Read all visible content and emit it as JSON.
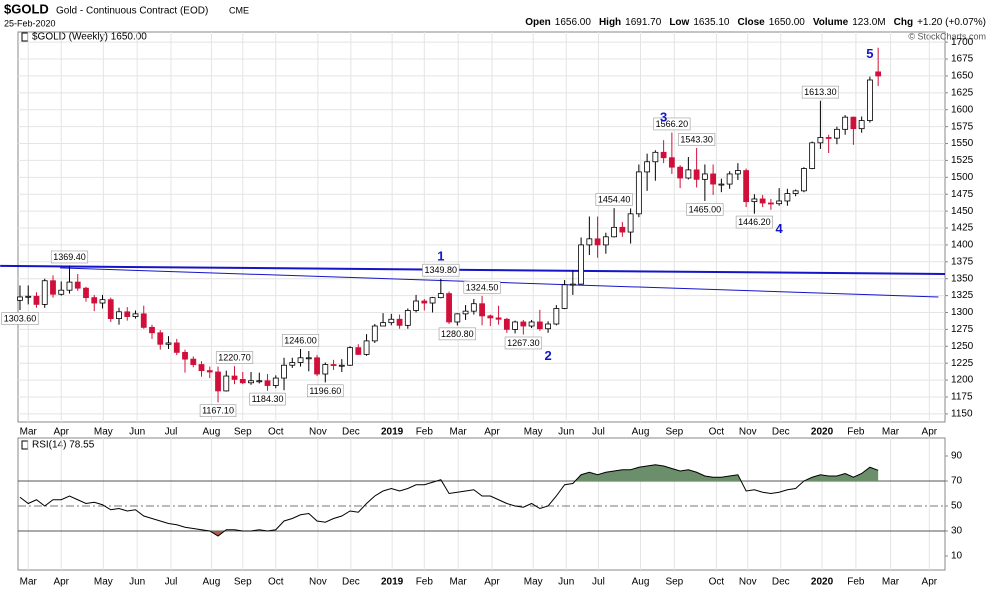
{
  "header": {
    "symbol": "$GOLD",
    "name": "Gold - Continuous Contract (EOD)",
    "exchange": "CME",
    "date": "25-Feb-2020",
    "copyright": "© StockCharts.com",
    "stats": [
      {
        "label": "Open",
        "value": "1656.00"
      },
      {
        "label": "High",
        "value": "1691.70"
      },
      {
        "label": "Low",
        "value": "1635.10"
      },
      {
        "label": "Close",
        "value": "1650.00"
      },
      {
        "label": "Volume",
        "value": "123.0M"
      },
      {
        "label": "Chg",
        "value": "+1.20 (+0.07%)"
      }
    ]
  },
  "chart_data": [
    {
      "type": "candlestick",
      "legend": "$GOLD (Weekly) 1650.00",
      "up_color": "#000000",
      "down_color": "#d0103a",
      "xlim": [
        -0.24,
        112.1
      ],
      "ylim": [
        1138,
        1715
      ],
      "grid": true,
      "yticks": [
        1150,
        1175,
        1200,
        1225,
        1250,
        1275,
        1300,
        1325,
        1350,
        1375,
        1400,
        1425,
        1450,
        1475,
        1500,
        1525,
        1550,
        1575,
        1600,
        1625,
        1650,
        1675,
        1700
      ],
      "xticks": [
        {
          "value": 1.0,
          "label": "Mar"
        },
        {
          "value": 5.0,
          "label": "Apr"
        },
        {
          "value": 10.1,
          "label": "May"
        },
        {
          "value": 14.2,
          "label": "Jun"
        },
        {
          "value": 18.3,
          "label": "Jul"
        },
        {
          "value": 23.2,
          "label": "Aug"
        },
        {
          "value": 27.0,
          "label": "Sep"
        },
        {
          "value": 31.0,
          "label": "Oct"
        },
        {
          "value": 36.1,
          "label": "Nov"
        },
        {
          "value": 40.1,
          "label": "Dec"
        },
        {
          "value": 45.1,
          "label": "2019"
        },
        {
          "value": 49.0,
          "label": "Feb"
        },
        {
          "value": 53.1,
          "label": "Mar"
        },
        {
          "value": 57.2,
          "label": "Apr"
        },
        {
          "value": 62.2,
          "label": "May"
        },
        {
          "value": 66.2,
          "label": "Jun"
        },
        {
          "value": 70.1,
          "label": "Jul"
        },
        {
          "value": 75.2,
          "label": "Aug"
        },
        {
          "value": 79.3,
          "label": "Sep"
        },
        {
          "value": 84.4,
          "label": "Oct"
        },
        {
          "value": 88.2,
          "label": "Nov"
        },
        {
          "value": 92.2,
          "label": "Dec"
        },
        {
          "value": 97.2,
          "label": "2020"
        },
        {
          "value": 101.3,
          "label": "Feb"
        },
        {
          "value": 105.5,
          "label": "Mar"
        },
        {
          "value": 110.2,
          "label": "Apr"
        }
      ],
      "open": [
        1318,
        1323,
        1324,
        1312,
        1347,
        1327,
        1333,
        1345,
        1336,
        1322,
        1314,
        1319,
        1291,
        1301,
        1294,
        1298,
        1278,
        1270,
        1253,
        1255,
        1241,
        1231,
        1223,
        1214,
        1212,
        1184,
        1206,
        1201,
        1196,
        1199,
        1199,
        1192,
        1203,
        1222,
        1226,
        1233,
        1233,
        1209,
        1223,
        1222,
        1222,
        1248,
        1238,
        1258,
        1280,
        1285,
        1290,
        1281,
        1303,
        1317,
        1314,
        1322,
        1328,
        1286,
        1298,
        1302,
        1313,
        1295,
        1292,
        1290,
        1275,
        1286,
        1280,
        1286,
        1276,
        1283,
        1306,
        1341,
        1342,
        1400,
        1409,
        1400,
        1412,
        1426,
        1419,
        1446,
        1508,
        1523,
        1537,
        1529,
        1515,
        1499,
        1511,
        1497,
        1505,
        1490,
        1490,
        1505,
        1510,
        1464,
        1468,
        1462,
        1461,
        1465,
        1476,
        1480,
        1513,
        1551,
        1559,
        1558,
        1571,
        1589,
        1572,
        1584,
        1656
      ],
      "high": [
        1340,
        1340,
        1330,
        1350,
        1355,
        1346,
        1369.4,
        1357,
        1338,
        1326,
        1326,
        1322,
        1307,
        1308,
        1303,
        1310,
        1282,
        1274,
        1265,
        1261,
        1245,
        1235,
        1228,
        1220,
        1220,
        1214,
        1220.7,
        1212,
        1212,
        1211,
        1209,
        1207,
        1233,
        1233,
        1246,
        1243,
        1237,
        1226,
        1230,
        1231,
        1250,
        1253,
        1268,
        1283,
        1299,
        1298,
        1297,
        1306,
        1326,
        1320,
        1323,
        1349.8,
        1331,
        1299,
        1311,
        1320,
        1324.5,
        1297,
        1310,
        1292,
        1288,
        1289,
        1289,
        1304,
        1287,
        1311,
        1348,
        1362,
        1411,
        1442,
        1442,
        1418,
        1454.4,
        1434,
        1454,
        1519,
        1535,
        1540,
        1555,
        1566.2,
        1518,
        1530,
        1543.3,
        1519,
        1519,
        1498,
        1509,
        1521,
        1513,
        1475,
        1474,
        1468,
        1484,
        1483,
        1482,
        1515,
        1553,
        1613.3,
        1563,
        1575,
        1592,
        1590,
        1590,
        1649,
        1691.7
      ],
      "low": [
        1303.6,
        1312,
        1307,
        1307,
        1322,
        1325,
        1328,
        1332,
        1316,
        1302,
        1306,
        1286,
        1282,
        1288,
        1291,
        1276,
        1261,
        1245,
        1246,
        1237,
        1211,
        1219,
        1205,
        1203,
        1167.1,
        1183,
        1194,
        1194,
        1193,
        1195,
        1184.3,
        1188,
        1185,
        1218,
        1220,
        1213,
        1206,
        1196.6,
        1215,
        1212,
        1221,
        1237,
        1236,
        1255,
        1280,
        1281,
        1276,
        1276,
        1300,
        1303,
        1300,
        1321,
        1283,
        1280.8,
        1289,
        1297,
        1281,
        1280,
        1282,
        1270,
        1269,
        1267.3,
        1277,
        1273,
        1270,
        1281,
        1305,
        1326,
        1342,
        1385,
        1381,
        1387,
        1411,
        1412,
        1402,
        1441,
        1480,
        1495,
        1521,
        1505,
        1484,
        1497,
        1485,
        1465,
        1474,
        1478,
        1483,
        1496,
        1456,
        1446.2,
        1456,
        1452,
        1458,
        1458,
        1472,
        1478,
        1512,
        1542,
        1536,
        1549,
        1563,
        1548,
        1566,
        1581,
        1635.1
      ],
      "close": [
        1323,
        1324,
        1312,
        1347,
        1327,
        1333,
        1345,
        1336,
        1322,
        1314,
        1319,
        1291,
        1301,
        1294,
        1298,
        1278,
        1270,
        1253,
        1255,
        1241,
        1231,
        1223,
        1214,
        1212,
        1184,
        1206,
        1201,
        1196,
        1199,
        1199,
        1192,
        1203,
        1222,
        1226,
        1233,
        1233,
        1209,
        1223,
        1222,
        1222,
        1248,
        1238,
        1258,
        1280,
        1285,
        1290,
        1281,
        1303,
        1317,
        1314,
        1322,
        1328,
        1286,
        1298,
        1302,
        1313,
        1295,
        1292,
        1290,
        1275,
        1286,
        1280,
        1286,
        1276,
        1283,
        1306,
        1341,
        1342,
        1400,
        1409,
        1400,
        1412,
        1426,
        1419,
        1446,
        1508,
        1523,
        1537,
        1529,
        1515,
        1499,
        1511,
        1497,
        1505,
        1490,
        1490,
        1505,
        1510,
        1464,
        1468,
        1462,
        1461,
        1465,
        1476,
        1480,
        1513,
        1551,
        1559,
        1558,
        1571,
        1589,
        1572,
        1584,
        1644,
        1650
      ],
      "trendlines": [
        {
          "x": [
            -2.4,
            112.1
          ],
          "y": [
            1369,
            1357
          ],
          "color": "#1414c8",
          "width": 2
        },
        {
          "x": [
            4.85,
            111.3
          ],
          "y": [
            1366,
            1323
          ],
          "color": "#1414c8",
          "width": 1
        }
      ],
      "annotations": [
        {
          "label": "1303.60",
          "candle": 0,
          "side": "below"
        },
        {
          "label": "1369.40",
          "candle": 6,
          "side": "above"
        },
        {
          "label": "1167.10",
          "candle": 24,
          "side": "below"
        },
        {
          "label": "1220.70",
          "candle": 26,
          "side": "above"
        },
        {
          "label": "1184.30",
          "candle": 30,
          "side": "below"
        },
        {
          "label": "1246.00",
          "candle": 34,
          "side": "above"
        },
        {
          "label": "1196.60",
          "candle": 37,
          "side": "below"
        },
        {
          "label": "1349.80",
          "candle": 51,
          "side": "above"
        },
        {
          "label": "1280.80",
          "candle": 53,
          "side": "below"
        },
        {
          "label": "1324.50",
          "candle": 56,
          "side": "above"
        },
        {
          "label": "1267.30",
          "candle": 61,
          "side": "below"
        },
        {
          "label": "1454.40",
          "candle": 72,
          "side": "above"
        },
        {
          "label": "1566.20",
          "candle": 79,
          "side": "above"
        },
        {
          "label": "1543.30",
          "candle": 82,
          "side": "above"
        },
        {
          "label": "1465.00",
          "candle": 83,
          "side": "below"
        },
        {
          "label": "1446.20",
          "candle": 89,
          "side": "below"
        },
        {
          "label": "1613.30",
          "candle": 97,
          "side": "above"
        }
      ],
      "waves": [
        {
          "label": "1",
          "candle": 51,
          "side": "above"
        },
        {
          "label": "2",
          "candle": 64,
          "side": "below"
        },
        {
          "label": "3",
          "candle": 78,
          "side": "above"
        },
        {
          "label": "4",
          "candle": 92,
          "side": "below"
        },
        {
          "label": "5",
          "candle": 103,
          "side": "above"
        }
      ],
      "wave_color": "#1414c8"
    },
    {
      "type": "line",
      "legend": "RSI(14) 78.55",
      "xlim": [
        -0.24,
        112.1
      ],
      "ylim": [
        -1.2,
        104.4
      ],
      "yticks": [
        10,
        30,
        50,
        70,
        90
      ],
      "levels": [
        70,
        50,
        30
      ],
      "upper_fill": "#6b8e6b",
      "lower_fill": "#b05a4a",
      "series": [
        {
          "color": "#000000",
          "values": [
            57,
            52,
            55,
            50,
            55,
            55,
            58,
            55,
            52,
            53,
            51,
            47,
            48,
            46,
            47,
            42,
            40,
            38,
            36,
            35,
            33,
            32,
            31,
            30,
            26,
            31,
            31,
            30,
            30,
            31,
            30,
            31,
            38,
            40,
            43,
            44,
            38,
            37,
            40,
            42,
            46,
            45,
            52,
            58,
            62,
            64,
            62,
            64,
            67,
            67,
            69,
            71,
            60,
            61,
            62,
            63,
            58,
            58,
            55,
            52,
            50,
            49,
            52,
            48,
            50,
            58,
            67,
            68,
            75,
            77,
            75,
            77,
            78,
            79,
            79,
            81,
            82,
            83,
            82,
            80,
            78,
            79,
            77,
            74,
            73,
            73,
            74,
            75,
            62,
            63,
            61,
            60,
            61,
            63,
            64,
            70,
            73,
            75,
            74,
            74,
            76,
            73,
            76,
            81,
            78.55
          ]
        }
      ]
    }
  ]
}
